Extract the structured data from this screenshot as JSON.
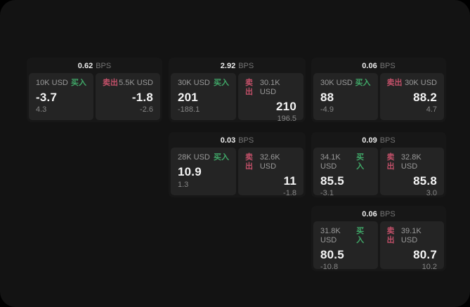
{
  "labels": {
    "buy": "买入",
    "sell": "卖出",
    "bps_unit": "BPS"
  },
  "colors": {
    "buy": "#40a868",
    "sell": "#c25069",
    "window-bg": "#131313",
    "card-bg": "#171717",
    "panel-bg": "#242424"
  },
  "cards": [
    {
      "bps": "0.62",
      "buy": {
        "amount": "10K USD",
        "value": "-3.7",
        "sub": "4.3"
      },
      "sell": {
        "amount": "5.5K USD",
        "value": "-1.8",
        "sub": "-2.6"
      }
    },
    {
      "bps": "2.92",
      "buy": {
        "amount": "30K USD",
        "value": "201",
        "sub": "-188.1"
      },
      "sell": {
        "amount": "30.1K USD",
        "value": "210",
        "sub": "196.5"
      }
    },
    {
      "bps": "0.06",
      "buy": {
        "amount": "30K USD",
        "value": "88",
        "sub": "-4.9"
      },
      "sell": {
        "amount": "30K USD",
        "value": "88.2",
        "sub": "4.7"
      }
    },
    {
      "bps": "0.03",
      "buy": {
        "amount": "28K USD",
        "value": "10.9",
        "sub": "1.3"
      },
      "sell": {
        "amount": "32.6K USD",
        "value": "11",
        "sub": "-1.8"
      }
    },
    {
      "bps": "0.09",
      "buy": {
        "amount": "34.1K USD",
        "value": "85.5",
        "sub": "-3.1"
      },
      "sell": {
        "amount": "32.8K USD",
        "value": "85.8",
        "sub": "3.0"
      }
    },
    {
      "bps": "0.06",
      "buy": {
        "amount": "31.8K USD",
        "value": "80.5",
        "sub": "-10.8"
      },
      "sell": {
        "amount": "39.1K USD",
        "value": "80.7",
        "sub": "10.2"
      }
    }
  ]
}
